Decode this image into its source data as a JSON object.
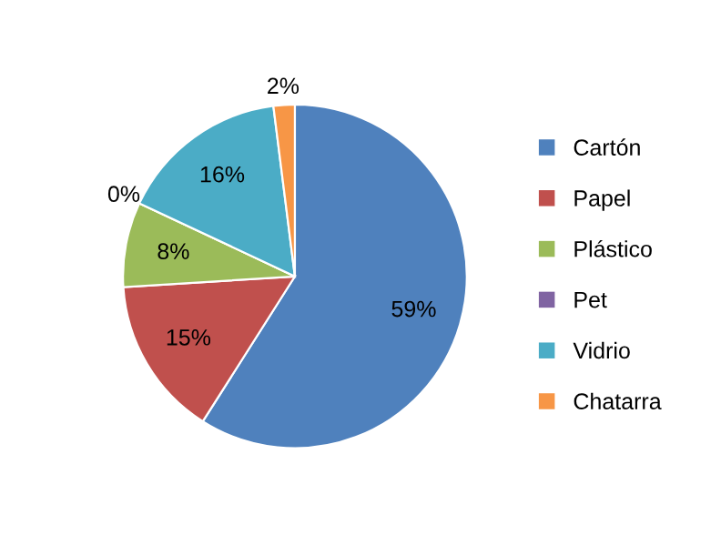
{
  "chart_data": {
    "type": "pie",
    "categories": [
      "Cartón",
      "Papel",
      "Plástico",
      "Pet",
      "Vidrio",
      "Chatarra"
    ],
    "values": [
      59,
      15,
      8,
      0,
      16,
      2
    ],
    "colors": [
      "#4f81bd",
      "#c0504d",
      "#9bbb59",
      "#8064a2",
      "#4bacc6",
      "#f79646"
    ],
    "value_labels": [
      "59%",
      "15%",
      "8%",
      "0%",
      "16%",
      "2%"
    ],
    "legend": "right"
  }
}
